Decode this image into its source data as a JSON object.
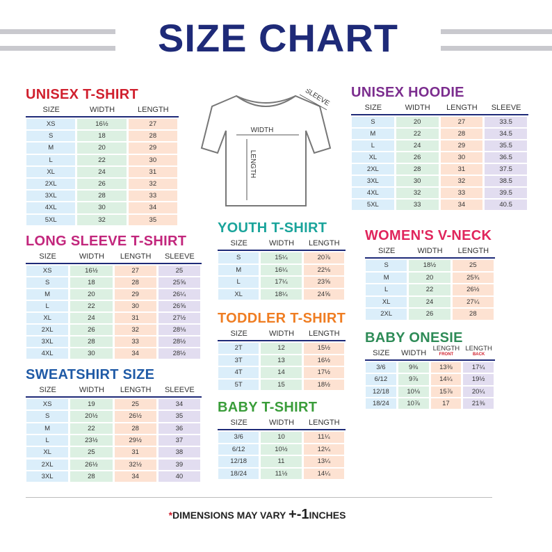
{
  "header": {
    "title": "SIZE CHART"
  },
  "diagram": {
    "labels": [
      "WIDTH",
      "LENGTH",
      "SLEEVE"
    ]
  },
  "tables": [
    {
      "title": "UNISEX T-SHIRT",
      "headers": [
        "SIZE",
        "WIDTH",
        "LENGTH"
      ],
      "rows": [
        [
          "XS",
          "16½",
          "27"
        ],
        [
          "S",
          "18",
          "28"
        ],
        [
          "M",
          "20",
          "29"
        ],
        [
          "L",
          "22",
          "30"
        ],
        [
          "XL",
          "24",
          "31"
        ],
        [
          "2XL",
          "26",
          "32"
        ],
        [
          "3XL",
          "28",
          "33"
        ],
        [
          "4XL",
          "30",
          "34"
        ],
        [
          "5XL",
          "32",
          "35"
        ]
      ]
    },
    {
      "title": "UNISEX HOODIE",
      "headers": [
        "SIZE",
        "WIDTH",
        "LENGTH",
        "SLEEVE"
      ],
      "rows": [
        [
          "S",
          "20",
          "27",
          "33.5"
        ],
        [
          "M",
          "22",
          "28",
          "34.5"
        ],
        [
          "L",
          "24",
          "29",
          "35.5"
        ],
        [
          "XL",
          "26",
          "30",
          "36.5"
        ],
        [
          "2XL",
          "28",
          "31",
          "37.5"
        ],
        [
          "3XL",
          "30",
          "32",
          "38.5"
        ],
        [
          "4XL",
          "32",
          "33",
          "39.5"
        ],
        [
          "5XL",
          "33",
          "34",
          "40.5"
        ]
      ]
    },
    {
      "title": "LONG SLEEVE T-SHIRT",
      "headers": [
        "SIZE",
        "WIDTH",
        "LENGTH",
        "SLEEVE"
      ],
      "rows": [
        [
          "XS",
          "16½",
          "27",
          "25"
        ],
        [
          "S",
          "18",
          "28",
          "25⅝"
        ],
        [
          "M",
          "20",
          "29",
          "26¼"
        ],
        [
          "L",
          "22",
          "30",
          "26⅝"
        ],
        [
          "XL",
          "24",
          "31",
          "27½"
        ],
        [
          "2XL",
          "26",
          "32",
          "28⅛"
        ],
        [
          "3XL",
          "28",
          "33",
          "28½"
        ],
        [
          "4XL",
          "30",
          "34",
          "28½"
        ]
      ]
    },
    {
      "title": "SWEATSHIRT SIZE",
      "headers": [
        "SIZE",
        "WIDTH",
        "LENGTH",
        "SLEEVE"
      ],
      "rows": [
        [
          "XS",
          "19",
          "25",
          "34"
        ],
        [
          "S",
          "20½",
          "26½",
          "35"
        ],
        [
          "M",
          "22",
          "28",
          "36"
        ],
        [
          "L",
          "23½",
          "29½",
          "37"
        ],
        [
          "XL",
          "25",
          "31",
          "38"
        ],
        [
          "2XL",
          "26½",
          "32½",
          "39"
        ],
        [
          "3XL",
          "28",
          "34",
          "40"
        ]
      ]
    },
    {
      "title": "YOUTH T-SHIRT",
      "headers": [
        "SIZE",
        "WIDTH",
        "LENGTH"
      ],
      "rows": [
        [
          "S",
          "15¼",
          "20⅞"
        ],
        [
          "M",
          "16¼",
          "22⅛"
        ],
        [
          "L",
          "17¼",
          "23⅝"
        ],
        [
          "XL",
          "18¼",
          "24⅝"
        ]
      ]
    },
    {
      "title": "TODDLER T-SHIRT",
      "headers": [
        "SIZE",
        "WIDTH",
        "LENGTH"
      ],
      "rows": [
        [
          "2T",
          "12",
          "15½"
        ],
        [
          "3T",
          "13",
          "16½"
        ],
        [
          "4T",
          "14",
          "17½"
        ],
        [
          "5T",
          "15",
          "18½"
        ]
      ]
    },
    {
      "title": "BABY T-SHIRT",
      "headers": [
        "SIZE",
        "WIDTH",
        "LENGTH"
      ],
      "rows": [
        [
          "3/6",
          "10",
          "11¼"
        ],
        [
          "6/12",
          "10½",
          "12¼"
        ],
        [
          "12/18",
          "11",
          "13¼"
        ],
        [
          "18/24",
          "11½",
          "14¼"
        ]
      ]
    },
    {
      "title": "WOMEN'S V-NECK",
      "headers": [
        "SIZE",
        "WIDTH",
        "LENGTH"
      ],
      "rows": [
        [
          "S",
          "18½",
          "25"
        ],
        [
          "M",
          "20",
          "25¾"
        ],
        [
          "L",
          "22",
          "26½"
        ],
        [
          "XL",
          "24",
          "27¼"
        ],
        [
          "2XL",
          "26",
          "28"
        ]
      ]
    },
    {
      "title": "BABY ONESIE",
      "headers": [
        "SIZE",
        "WIDTH",
        {
          "text": "LENGTH",
          "note": "FRONT"
        },
        {
          "text": "LENGTH",
          "note": "BACK"
        }
      ],
      "rows": [
        [
          "3/6",
          "9⅜",
          "13⅜",
          "17¼"
        ],
        [
          "6/12",
          "9⅞",
          "14¼",
          "19½"
        ],
        [
          "12/18",
          "10⅛",
          "15⅞",
          "20¼"
        ],
        [
          "18/24",
          "10⅞",
          "17",
          "21⅜"
        ]
      ]
    }
  ],
  "footer": {
    "star": "*",
    "text": "DIMENSIONS MAY VARY",
    "tolerance": "+-1",
    "unit": "INCHES"
  }
}
